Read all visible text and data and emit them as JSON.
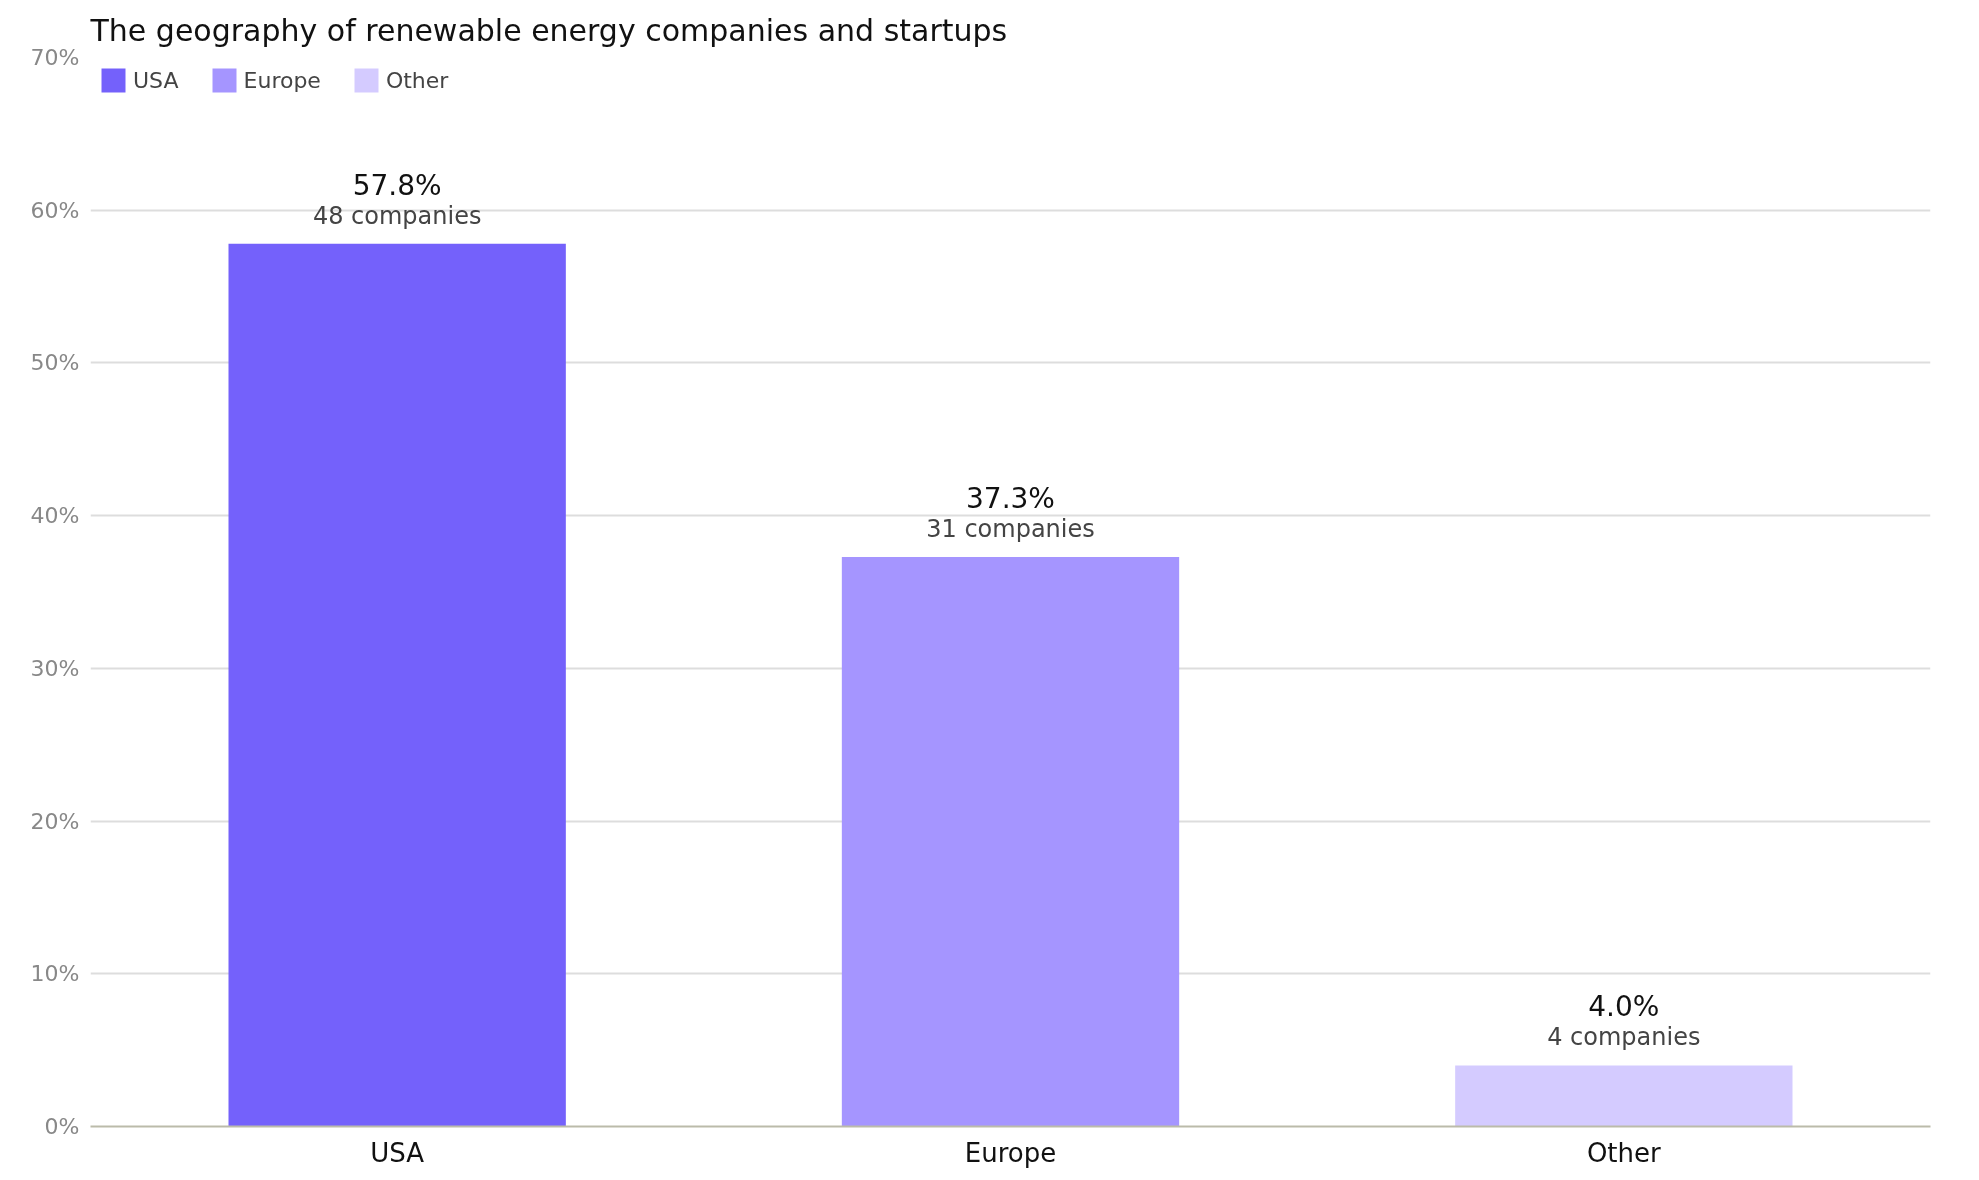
{
  "chart_data": {
    "type": "bar",
    "title": "The geography of renewable energy companies and startups",
    "categories": [
      "USA",
      "Europe",
      "Other"
    ],
    "series": [
      {
        "name": "USA",
        "color": "#7461fb",
        "values": [
          57.8,
          null,
          null
        ],
        "value_labels": [
          "57.8%",
          null,
          null
        ]
      },
      {
        "name": "Europe",
        "color": "#a595ff",
        "values": [
          null,
          37.3,
          null
        ],
        "value_labels": [
          null,
          "37.3%",
          null
        ]
      },
      {
        "name": "Other",
        "color": "#d4cbff",
        "values": [
          null,
          null,
          4.0
        ],
        "value_labels": [
          null,
          null,
          "4.0%"
        ]
      }
    ],
    "annotations": [
      {
        "text": "48 companies",
        "x": "USA",
        "y": 57.8
      },
      {
        "text": "31 companies",
        "x": "Europe",
        "y": 37.3
      },
      {
        "text": "4 companies",
        "x": "Other",
        "y": 4.0
      }
    ],
    "ylim": [
      0,
      70
    ],
    "yticks": [
      {
        "value": 0,
        "label": "0%"
      },
      {
        "value": 10,
        "label": "10%"
      },
      {
        "value": 20,
        "label": "20%"
      },
      {
        "value": 30,
        "label": "30%"
      },
      {
        "value": 40,
        "label": "40%"
      },
      {
        "value": 50,
        "label": "50%"
      },
      {
        "value": 60,
        "label": "60%"
      },
      {
        "value": 70,
        "label": "70%"
      }
    ],
    "grid": "y",
    "legend": "top left"
  }
}
